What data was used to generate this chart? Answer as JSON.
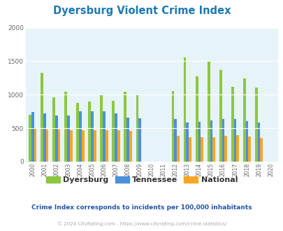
{
  "title": "Dyersburg Violent Crime Index",
  "title_color": "#1a7ab5",
  "years": [
    2000,
    2001,
    2002,
    2003,
    2004,
    2005,
    2006,
    2007,
    2008,
    2009,
    2010,
    2011,
    2012,
    2013,
    2014,
    2015,
    2016,
    2017,
    2018,
    2019,
    2020
  ],
  "dyersburg": [
    700,
    1330,
    960,
    1050,
    880,
    895,
    995,
    910,
    1040,
    995,
    null,
    null,
    1060,
    1555,
    1270,
    1500,
    1370,
    1120,
    1245,
    1105,
    null
  ],
  "tennessee": [
    740,
    720,
    690,
    690,
    750,
    750,
    750,
    720,
    660,
    650,
    null,
    null,
    640,
    580,
    600,
    615,
    635,
    640,
    610,
    590,
    null
  ],
  "national": [
    500,
    480,
    480,
    470,
    470,
    465,
    465,
    465,
    455,
    null,
    null,
    null,
    390,
    365,
    365,
    370,
    390,
    395,
    375,
    360,
    null
  ],
  "dyersburg_color": "#8dc63f",
  "tennessee_color": "#4a90d9",
  "national_color": "#f5a623",
  "bg_color": "#e6f3f8",
  "ylim": [
    0,
    2000
  ],
  "yticks": [
    0,
    500,
    1000,
    1500,
    2000
  ],
  "subtitle": "Crime Index corresponds to incidents per 100,000 inhabitants",
  "subtitle_color": "#2255aa",
  "footer": "© 2024 CityRating.com - https://www.cityrating.com/crime-statistics/",
  "footer_color": "#aaaaaa",
  "bar_width": 0.22,
  "legend_labels": [
    "Dyersburg",
    "Tennessee",
    "National"
  ]
}
